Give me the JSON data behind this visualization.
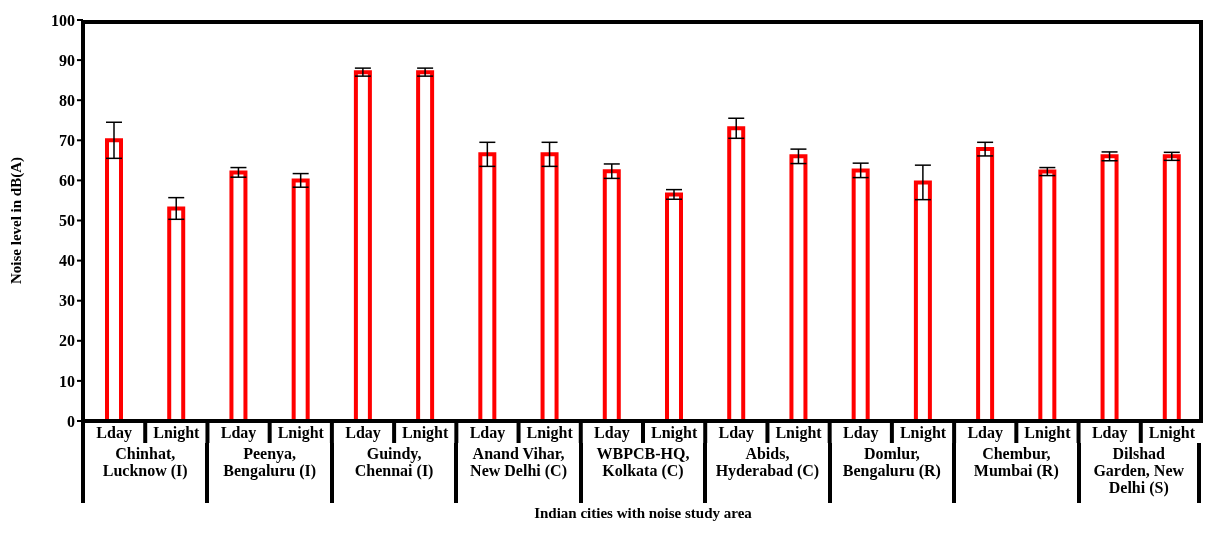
{
  "chart_data": {
    "type": "bar",
    "xlabel": "Indian cities with noise study area",
    "ylabel": "Noise level in dB(A)",
    "categories": [
      "Lday",
      "Lnight",
      "Lday",
      "Lnight",
      "Lday",
      "Lnight",
      "Lday",
      "Lnight",
      "Lday",
      "Lnight",
      "Lday",
      "Lnight",
      "Lday",
      "Lnight",
      "Lday",
      "Lnight",
      "Lday",
      "Lnight"
    ],
    "values": [
      70,
      53,
      62,
      60,
      87,
      87,
      66.5,
      66.5,
      62.3,
      56.5,
      73,
      66,
      62.5,
      59.5,
      67.8,
      62.2,
      66,
      66
    ],
    "errors": [
      4.5,
      2.7,
      1.2,
      1.7,
      1,
      1,
      3,
      3,
      1.8,
      1.2,
      2.5,
      1.8,
      1.8,
      4.3,
      1.7,
      1,
      1.1,
      1
    ],
    "color": "#ff0000",
    "ylim": [
      0,
      100
    ],
    "yticks": [
      0,
      10,
      20,
      30,
      40,
      50,
      60,
      70,
      80,
      90,
      100
    ],
    "annotations": [
      "Chinhat, Lucknow (I)",
      "Peenya, Bengaluru (I)",
      "Guindy, Chennai (I)",
      "Anand Vihar, New Delhi (C)",
      "WBPCB-HQ, Kolkata (C)",
      "Abids, Hyderabad (C)",
      "Domlur, Bengaluru (R)",
      "Chembur, Mumbai (R)",
      "Dilshad Garden, New Delhi (S)"
    ]
  }
}
